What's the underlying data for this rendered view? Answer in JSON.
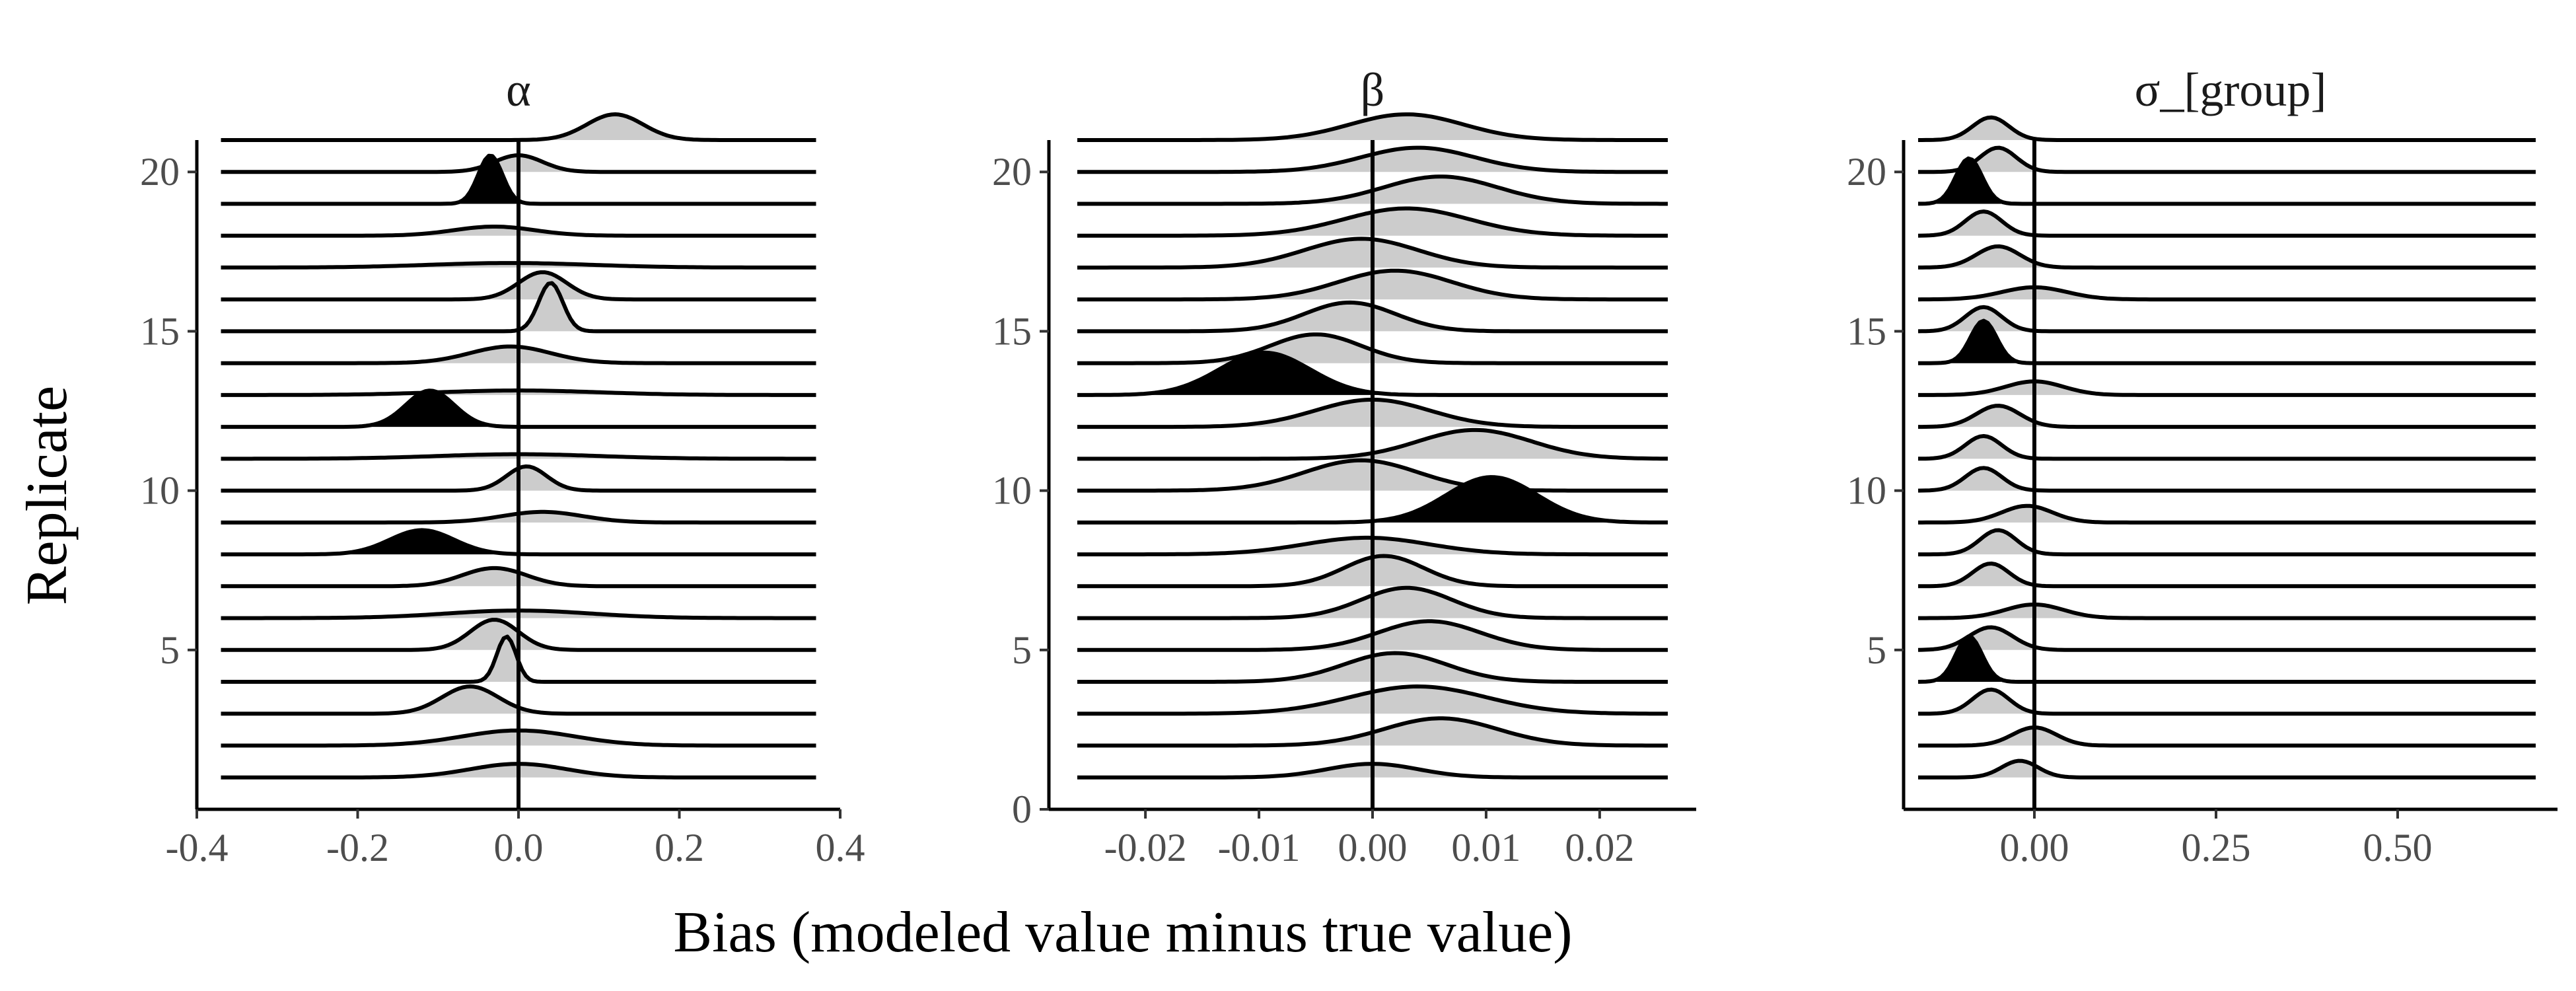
{
  "chart_data": {
    "type": "ridgeline",
    "xlabel": "Bias (modeled value minus true value)",
    "ylabel": "Replicate",
    "ylim": [
      0,
      21
    ],
    "reference_x": 0,
    "fill_color": "#cccccc",
    "highlight_color": "#000000",
    "line_color": "#000000",
    "panels": [
      {
        "title": "α",
        "xlim": [
          -0.4,
          0.4
        ],
        "range": [
          -0.37,
          0.37
        ],
        "x_ticks": [
          -0.4,
          -0.2,
          0.0,
          0.2,
          0.4
        ],
        "x_tick_labels": [
          "-0.4",
          "-0.2",
          "0.0",
          "0.2",
          "0.4"
        ],
        "y_ticks": [
          5,
          10,
          15,
          20
        ],
        "y_tick_labels": [
          "5",
          "10",
          "15",
          "20"
        ],
        "replicates": [
          {
            "replicate": 1,
            "mean": 0.0,
            "sd": 0.06,
            "peak": 0.45,
            "highlight": false
          },
          {
            "replicate": 2,
            "mean": 0.0,
            "sd": 0.07,
            "peak": 0.5,
            "highlight": false
          },
          {
            "replicate": 3,
            "mean": -0.06,
            "sd": 0.035,
            "peak": 0.9,
            "highlight": false
          },
          {
            "replicate": 4,
            "mean": -0.015,
            "sd": 0.012,
            "peak": 1.5,
            "highlight": false
          },
          {
            "replicate": 5,
            "mean": -0.03,
            "sd": 0.03,
            "peak": 1.0,
            "highlight": false
          },
          {
            "replicate": 6,
            "mean": 0.0,
            "sd": 0.09,
            "peak": 0.25,
            "highlight": false
          },
          {
            "replicate": 7,
            "mean": -0.03,
            "sd": 0.04,
            "peak": 0.6,
            "highlight": false
          },
          {
            "replicate": 8,
            "mean": -0.12,
            "sd": 0.04,
            "peak": 0.8,
            "highlight": true
          },
          {
            "replicate": 9,
            "mean": 0.03,
            "sd": 0.05,
            "peak": 0.35,
            "highlight": false
          },
          {
            "replicate": 10,
            "mean": 0.01,
            "sd": 0.025,
            "peak": 0.8,
            "highlight": false
          },
          {
            "replicate": 11,
            "mean": 0.0,
            "sd": 0.1,
            "peak": 0.15,
            "highlight": false
          },
          {
            "replicate": 12,
            "mean": -0.11,
            "sd": 0.03,
            "peak": 1.2,
            "highlight": true
          },
          {
            "replicate": 13,
            "mean": 0.0,
            "sd": 0.1,
            "peak": 0.15,
            "highlight": false
          },
          {
            "replicate": 14,
            "mean": -0.01,
            "sd": 0.05,
            "peak": 0.55,
            "highlight": false
          },
          {
            "replicate": 15,
            "mean": 0.04,
            "sd": 0.015,
            "peak": 1.6,
            "highlight": false
          },
          {
            "replicate": 16,
            "mean": 0.03,
            "sd": 0.03,
            "peak": 0.9,
            "highlight": false
          },
          {
            "replicate": 17,
            "mean": -0.01,
            "sd": 0.1,
            "peak": 0.15,
            "highlight": false
          },
          {
            "replicate": 18,
            "mean": -0.03,
            "sd": 0.05,
            "peak": 0.3,
            "highlight": false
          },
          {
            "replicate": 19,
            "mean": -0.035,
            "sd": 0.015,
            "peak": 1.6,
            "highlight": true
          },
          {
            "replicate": 20,
            "mean": 0.0,
            "sd": 0.03,
            "peak": 0.55,
            "highlight": false
          },
          {
            "replicate": 21,
            "mean": 0.12,
            "sd": 0.035,
            "peak": 0.85,
            "highlight": false
          }
        ]
      },
      {
        "title": "β",
        "xlim": [
          -0.0285,
          0.0285
        ],
        "range": [
          -0.026,
          0.026
        ],
        "x_ticks": [
          -0.02,
          -0.01,
          0.0,
          0.01,
          0.02
        ],
        "x_tick_labels": [
          "-0.02",
          "-0.01",
          "0.00",
          "0.01",
          "0.02"
        ],
        "y_ticks": [
          0,
          5,
          10,
          15,
          20
        ],
        "y_tick_labels": [
          "0",
          "5",
          "10",
          "15",
          "20"
        ],
        "replicates": [
          {
            "replicate": 1,
            "mean": 0.0,
            "sd": 0.004,
            "peak": 0.45,
            "highlight": false
          },
          {
            "replicate": 2,
            "mean": 0.006,
            "sd": 0.005,
            "peak": 0.9,
            "highlight": false
          },
          {
            "replicate": 3,
            "mean": 0.004,
            "sd": 0.006,
            "peak": 0.9,
            "highlight": false
          },
          {
            "replicate": 4,
            "mean": 0.002,
            "sd": 0.0045,
            "peak": 0.95,
            "highlight": false
          },
          {
            "replicate": 5,
            "mean": 0.005,
            "sd": 0.0045,
            "peak": 0.95,
            "highlight": false
          },
          {
            "replicate": 6,
            "mean": 0.003,
            "sd": 0.004,
            "peak": 1.0,
            "highlight": false
          },
          {
            "replicate": 7,
            "mean": 0.001,
            "sd": 0.0035,
            "peak": 1.0,
            "highlight": false
          },
          {
            "replicate": 8,
            "mean": -0.0005,
            "sd": 0.0055,
            "peak": 0.55,
            "highlight": false
          },
          {
            "replicate": 9,
            "mean": 0.0105,
            "sd": 0.004,
            "peak": 1.5,
            "highlight": true
          },
          {
            "replicate": 10,
            "mean": -0.001,
            "sd": 0.005,
            "peak": 1.0,
            "highlight": false
          },
          {
            "replicate": 11,
            "mean": 0.009,
            "sd": 0.005,
            "peak": 0.95,
            "highlight": false
          },
          {
            "replicate": 12,
            "mean": 0.0,
            "sd": 0.005,
            "peak": 0.9,
            "highlight": false
          },
          {
            "replicate": 13,
            "mean": -0.0095,
            "sd": 0.004,
            "peak": 1.4,
            "highlight": true
          },
          {
            "replicate": 14,
            "mean": -0.005,
            "sd": 0.004,
            "peak": 0.95,
            "highlight": false
          },
          {
            "replicate": 15,
            "mean": -0.002,
            "sd": 0.004,
            "peak": 0.95,
            "highlight": false
          },
          {
            "replicate": 16,
            "mean": 0.002,
            "sd": 0.005,
            "peak": 0.95,
            "highlight": false
          },
          {
            "replicate": 17,
            "mean": -0.001,
            "sd": 0.005,
            "peak": 0.95,
            "highlight": false
          },
          {
            "replicate": 18,
            "mean": 0.003,
            "sd": 0.0055,
            "peak": 0.9,
            "highlight": false
          },
          {
            "replicate": 19,
            "mean": 0.006,
            "sd": 0.005,
            "peak": 0.9,
            "highlight": false
          },
          {
            "replicate": 20,
            "mean": 0.004,
            "sd": 0.005,
            "peak": 0.8,
            "highlight": false
          },
          {
            "replicate": 21,
            "mean": 0.003,
            "sd": 0.005,
            "peak": 0.85,
            "highlight": false
          }
        ]
      },
      {
        "title": "σ_[group]",
        "xlim": [
          -0.18,
          0.72
        ],
        "range": [
          -0.16,
          0.69
        ],
        "x_ticks": [
          0.0,
          0.25,
          0.5
        ],
        "x_tick_labels": [
          "0.00",
          "0.25",
          "0.50"
        ],
        "y_ticks": [
          5,
          10,
          15,
          20
        ],
        "y_tick_labels": [
          "5",
          "10",
          "15",
          "20"
        ],
        "replicates": [
          {
            "replicate": 1,
            "mean": -0.02,
            "sd": 0.025,
            "peak": 0.55,
            "highlight": false
          },
          {
            "replicate": 2,
            "mean": 0.0,
            "sd": 0.03,
            "peak": 0.6,
            "highlight": false
          },
          {
            "replicate": 3,
            "mean": -0.06,
            "sd": 0.025,
            "peak": 0.8,
            "highlight": false
          },
          {
            "replicate": 4,
            "mean": -0.09,
            "sd": 0.018,
            "peak": 1.5,
            "highlight": true
          },
          {
            "replicate": 5,
            "mean": -0.06,
            "sd": 0.03,
            "peak": 0.75,
            "highlight": false
          },
          {
            "replicate": 6,
            "mean": 0.0,
            "sd": 0.04,
            "peak": 0.45,
            "highlight": false
          },
          {
            "replicate": 7,
            "mean": -0.06,
            "sd": 0.025,
            "peak": 0.75,
            "highlight": false
          },
          {
            "replicate": 8,
            "mean": -0.05,
            "sd": 0.025,
            "peak": 0.8,
            "highlight": false
          },
          {
            "replicate": 9,
            "mean": -0.01,
            "sd": 0.035,
            "peak": 0.55,
            "highlight": false
          },
          {
            "replicate": 10,
            "mean": -0.07,
            "sd": 0.025,
            "peak": 0.75,
            "highlight": false
          },
          {
            "replicate": 11,
            "mean": -0.07,
            "sd": 0.025,
            "peak": 0.75,
            "highlight": false
          },
          {
            "replicate": 12,
            "mean": -0.05,
            "sd": 0.03,
            "peak": 0.7,
            "highlight": false
          },
          {
            "replicate": 13,
            "mean": 0.0,
            "sd": 0.04,
            "peak": 0.45,
            "highlight": false
          },
          {
            "replicate": 14,
            "mean": -0.07,
            "sd": 0.018,
            "peak": 1.4,
            "highlight": true
          },
          {
            "replicate": 15,
            "mean": -0.07,
            "sd": 0.025,
            "peak": 0.8,
            "highlight": false
          },
          {
            "replicate": 16,
            "mean": 0.0,
            "sd": 0.045,
            "peak": 0.4,
            "highlight": false
          },
          {
            "replicate": 17,
            "mean": -0.05,
            "sd": 0.03,
            "peak": 0.7,
            "highlight": false
          },
          {
            "replicate": 18,
            "mean": -0.07,
            "sd": 0.025,
            "peak": 0.8,
            "highlight": false
          },
          {
            "replicate": 19,
            "mean": -0.09,
            "sd": 0.018,
            "peak": 1.5,
            "highlight": true
          },
          {
            "replicate": 20,
            "mean": -0.05,
            "sd": 0.025,
            "peak": 0.8,
            "highlight": false
          },
          {
            "replicate": 21,
            "mean": -0.06,
            "sd": 0.025,
            "peak": 0.75,
            "highlight": false
          }
        ]
      }
    ]
  }
}
